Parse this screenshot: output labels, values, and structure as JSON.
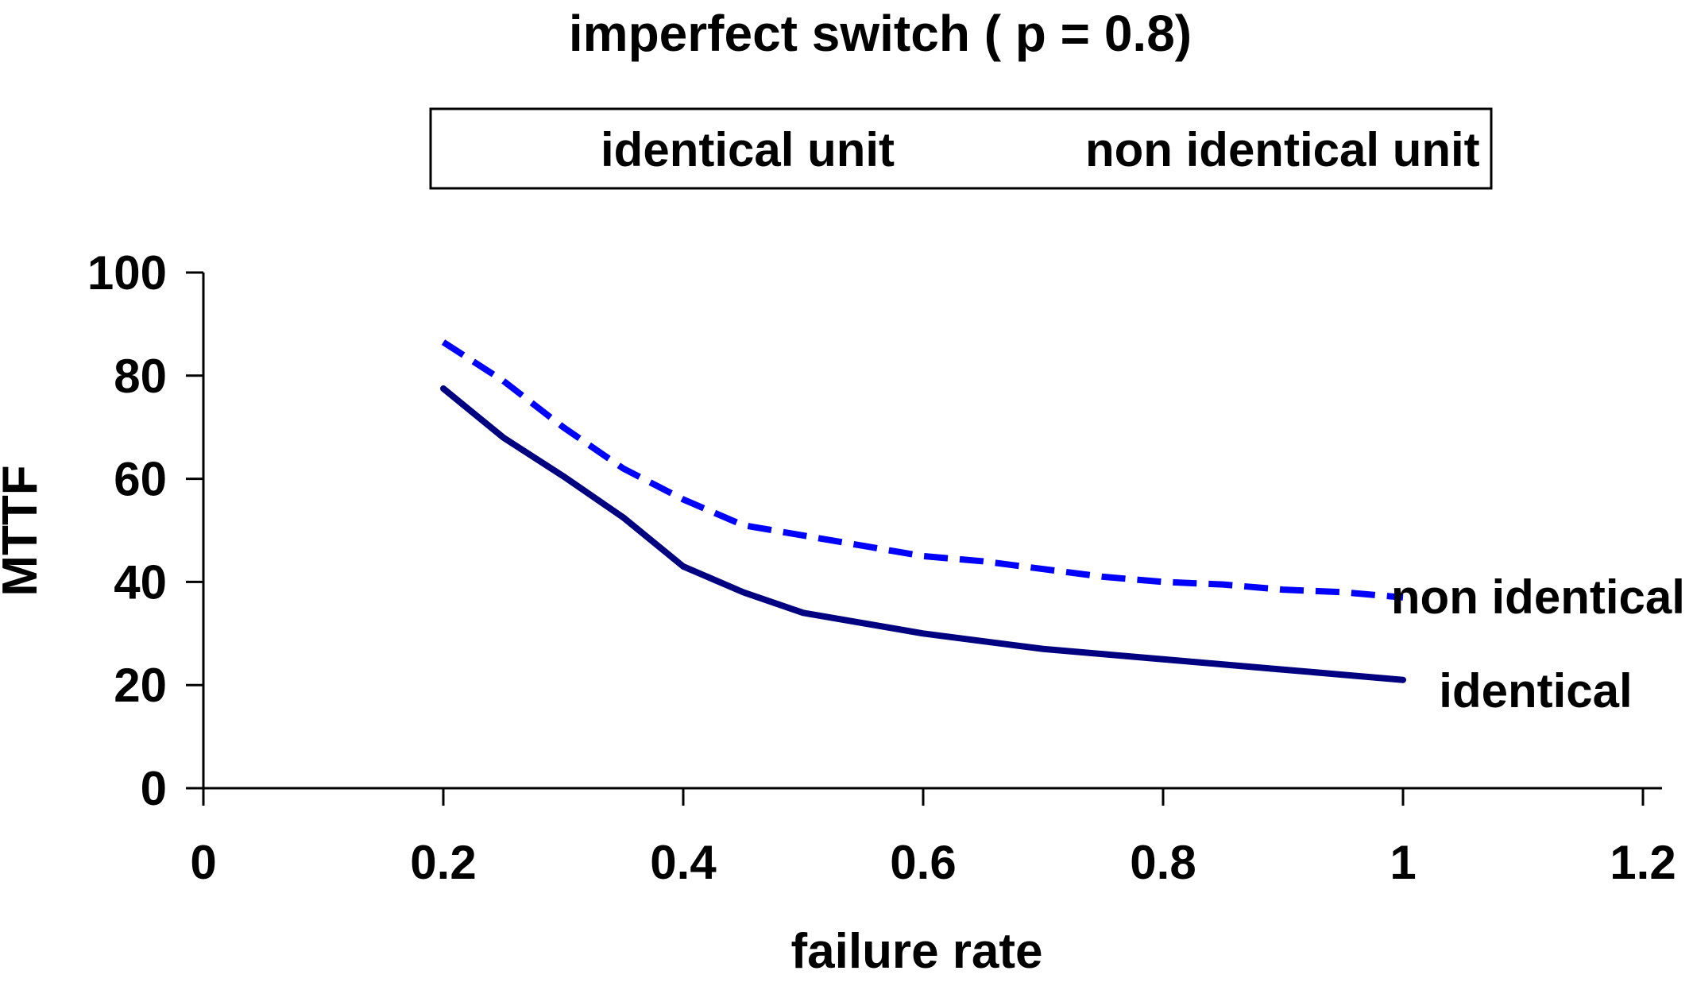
{
  "chart_data": {
    "type": "line",
    "title": "imperfect switch ( p = 0.8)",
    "xlabel": "failure rate",
    "ylabel": "MTTF",
    "xlim": [
      0,
      1.2
    ],
    "ylim": [
      0,
      100
    ],
    "grid": false,
    "legend_position": "top",
    "x_ticks": [
      0,
      0.2,
      0.4,
      0.6,
      0.8,
      1,
      1.2
    ],
    "x_tick_labels": [
      "0",
      "0.2",
      "0.4",
      "0.6",
      "0.8",
      "1",
      "1.2"
    ],
    "y_ticks": [
      0,
      20,
      40,
      60,
      80,
      100
    ],
    "y_tick_labels": [
      "0",
      "20",
      "40",
      "60",
      "80",
      "100"
    ],
    "x": [
      0.2,
      0.25,
      0.3,
      0.35,
      0.4,
      0.45,
      0.5,
      0.55,
      0.6,
      0.65,
      0.7,
      0.75,
      0.8,
      0.85,
      0.9,
      0.95,
      1.0
    ],
    "series": [
      {
        "name": "identical unit",
        "style": "solid",
        "color": "#000080",
        "values": [
          77.5,
          68,
          60.5,
          52.5,
          43,
          38,
          34,
          32,
          30,
          28.5,
          27,
          26,
          25,
          24,
          23,
          22,
          21
        ]
      },
      {
        "name": "non identical unit",
        "style": "dashed",
        "color": "#0000FF",
        "values": [
          86.5,
          79,
          70,
          62,
          56,
          51,
          49,
          47,
          45,
          44,
          42.5,
          41,
          40,
          39.5,
          38.5,
          38,
          37
        ]
      }
    ],
    "annotations": [
      {
        "text": "non identical",
        "x": 0.99,
        "y": 33.9
      },
      {
        "text": "identical",
        "x": 1.03,
        "y": 15.7
      }
    ]
  }
}
